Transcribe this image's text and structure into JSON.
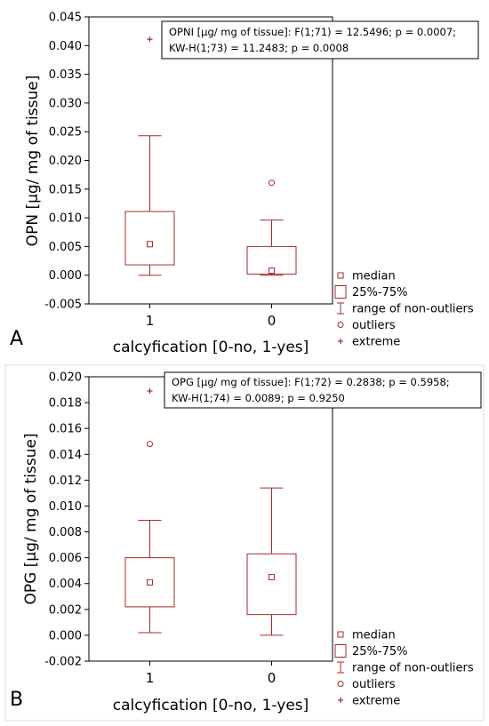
{
  "chart_data": [
    {
      "type": "box",
      "panel_label": "A",
      "title": "",
      "xlabel": "calcyfication [0-no, 1-yes]",
      "ylabel": "OPN [µg/ mg of tissue]",
      "ylim": [
        -0.005,
        0.045
      ],
      "yticks": [
        "-0.005",
        "0.000",
        "0.005",
        "0.010",
        "0.015",
        "0.020",
        "0.025",
        "0.030",
        "0.035",
        "0.040",
        "0.045"
      ],
      "categories": [
        "1",
        "0"
      ],
      "boxes": [
        {
          "category": "1",
          "q1": 0.0018,
          "median": 0.0054,
          "q3": 0.0111,
          "whisker_low": 0.0,
          "whisker_high": 0.0243,
          "outliers": [],
          "extremes": [
            0.0411
          ]
        },
        {
          "category": "0",
          "q1": 0.0002,
          "median": 0.0008,
          "q3": 0.005,
          "whisker_low": 0.0,
          "whisker_high": 0.0096,
          "outliers": [
            0.0161
          ],
          "extremes": []
        }
      ],
      "stats_lines": [
        "OPNI [µg/ mg of tissue]:   F(1;71) = 12.5496; p = 0.0007;",
        "KW-H(1;73) = 11.2483; p = 0.0008"
      ],
      "legend": [
        "median",
        "25%-75%",
        "range of non-outliers",
        "outliers",
        "extreme"
      ],
      "color": "#a52a2a"
    },
    {
      "type": "box",
      "panel_label": "B",
      "title": "",
      "xlabel": "calcyfication [0-no, 1-yes]",
      "ylabel": "OPG [µg/ mg of tissue]",
      "ylim": [
        -0.002,
        0.02
      ],
      "yticks": [
        "-0.002",
        "0.000",
        "0.002",
        "0.004",
        "0.006",
        "0.008",
        "0.010",
        "0.012",
        "0.014",
        "0.016",
        "0.018",
        "0.020"
      ],
      "categories": [
        "1",
        "0"
      ],
      "boxes": [
        {
          "category": "1",
          "q1": 0.0022,
          "median": 0.0041,
          "q3": 0.006,
          "whisker_low": 0.0002,
          "whisker_high": 0.0089,
          "outliers": [
            0.0148
          ],
          "extremes": [
            0.0189
          ]
        },
        {
          "category": "0",
          "q1": 0.0016,
          "median": 0.0045,
          "q3": 0.0063,
          "whisker_low": 0.0,
          "whisker_high": 0.0114,
          "outliers": [],
          "extremes": []
        }
      ],
      "stats_lines": [
        "OPG [µg/ mg of tissue]:   F(1;72) = 0.2838; p = 0.5958;",
        "KW-H(1;74) = 0.0089; p = 0.9250"
      ],
      "legend": [
        "median",
        "25%-75%",
        "range of non-outliers",
        "outliers",
        "extreme"
      ],
      "color": "#a52a2a"
    }
  ]
}
